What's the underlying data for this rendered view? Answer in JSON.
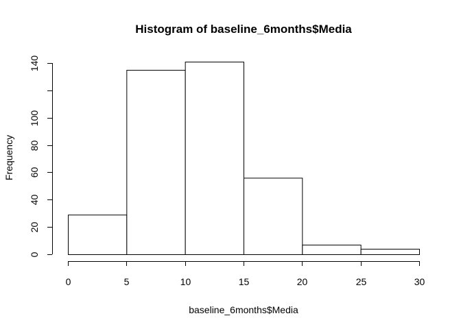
{
  "chart_data": {
    "type": "bar",
    "title": "Histogram of baseline_6months$Media",
    "xlabel": "baseline_6months$Media",
    "ylabel": "Frequency",
    "bins": [
      {
        "start": 0,
        "end": 5,
        "count": 29
      },
      {
        "start": 5,
        "end": 10,
        "count": 135
      },
      {
        "start": 10,
        "end": 15,
        "count": 141
      },
      {
        "start": 15,
        "end": 20,
        "count": 56
      },
      {
        "start": 20,
        "end": 25,
        "count": 7
      },
      {
        "start": 25,
        "end": 30,
        "count": 4
      }
    ],
    "xlim": [
      0,
      30
    ],
    "ylim": [
      0,
      140
    ],
    "x_ticks": [
      0,
      5,
      10,
      15,
      20,
      25,
      30
    ],
    "y_ticks": [
      0,
      20,
      40,
      60,
      80,
      100,
      120,
      140
    ],
    "y_tick_labels": [
      "0",
      "20",
      "40",
      "60",
      "80",
      "100",
      "",
      "140"
    ],
    "grid": false,
    "colors": {
      "bar_fill": "#ffffff",
      "bar_stroke": "#000000"
    }
  }
}
